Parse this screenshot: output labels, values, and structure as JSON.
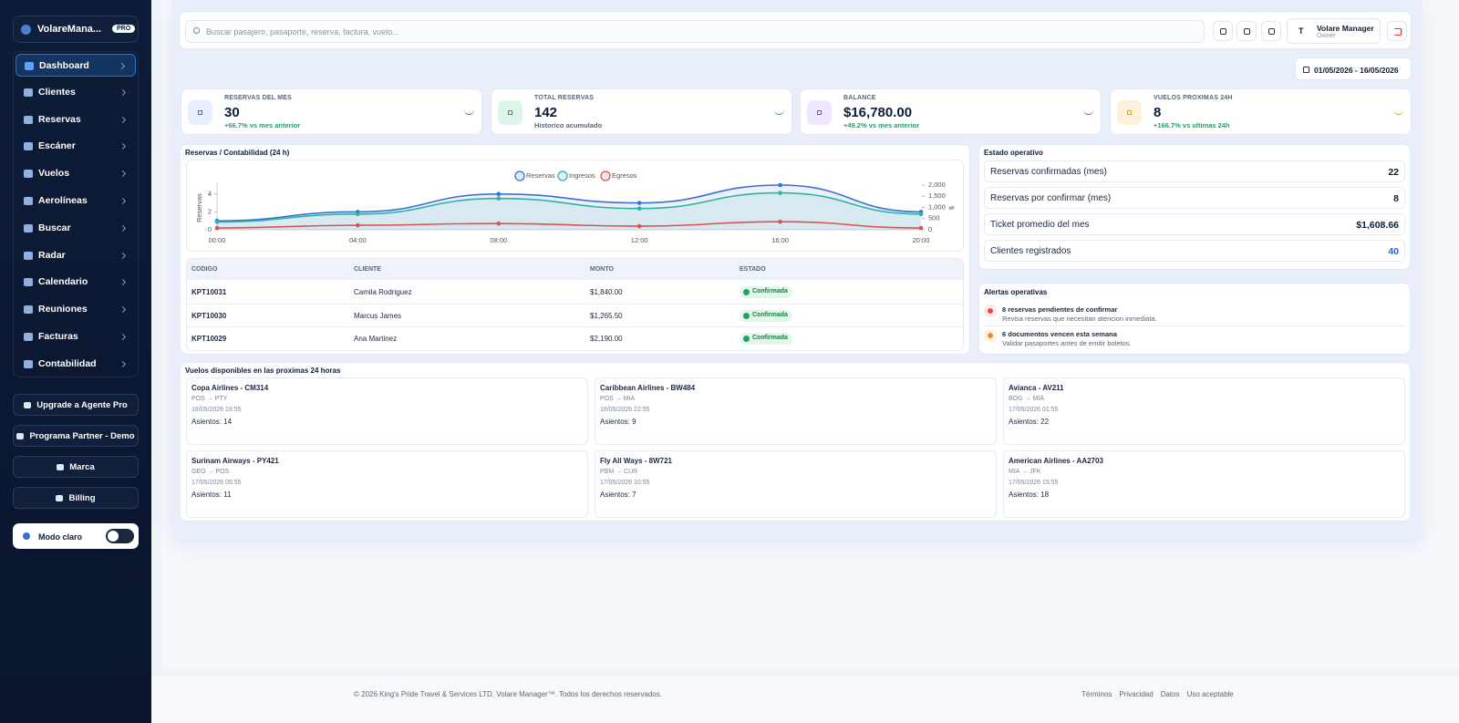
{
  "sidebar": {
    "brand": "VolareMana...",
    "badge": "PRO",
    "nav": [
      "Dashboard",
      "Clientes",
      "Reservas",
      "Escáner",
      "Vuelos",
      "Aerolíneas",
      "Buscar",
      "Radar",
      "Calendario",
      "Reuniones",
      "Facturas",
      "Contabilidad"
    ],
    "buttons": [
      "Upgrade a Agente Pro",
      "Programa Partner - Demo",
      "Marca",
      "Billing"
    ],
    "theme_label": "Modo claro"
  },
  "header": {
    "search_placeholder": "Buscar pasajero, pasaporte, reserva, factura, vuelo...",
    "avatar": "T",
    "user_name": "Volare Manager",
    "user_role": "Owner",
    "date_range": "01/05/2026 - 16/05/2026"
  },
  "kpis": [
    {
      "label": "RESERVAS DEL MES",
      "value": 30,
      "note": "+66.7% vs mes anterior"
    },
    {
      "label": "TOTAL RESERVAS",
      "value": 142,
      "note": "Historico acumulado"
    },
    {
      "label": "BALANCE",
      "value": "$16,780.00",
      "note": "+49.2% vs mes anterior"
    },
    {
      "label": "VUELOS PROXIMAS 24H",
      "value": 8,
      "note": "+166.7% vs ultimas 24h"
    }
  ],
  "chart": {
    "type": "line",
    "title": "Reservas / Contabilidad (24 h)",
    "categories": [
      "00:00",
      "04:00",
      "08:00",
      "12:00",
      "16:00",
      "20:00"
    ],
    "series": [
      {
        "name": "Reservas",
        "color": "#3a6fd8",
        "values": [
          1,
          2,
          4,
          3,
          5,
          2
        ]
      },
      {
        "name": "Ingresos",
        "color": "#2db3a6",
        "axis": "y2",
        "values": [
          350,
          700,
          1400,
          950,
          1650,
          700
        ]
      },
      {
        "name": "Egresos",
        "color": "#d9534f",
        "axis": "y2",
        "values": [
          80,
          200,
          280,
          160,
          360,
          80
        ]
      }
    ],
    "y_label": "Reservas",
    "y2_label": "$",
    "ylim": [
      0,
      5
    ],
    "yticks": [
      0,
      2,
      4
    ],
    "y2lim": [
      0,
      2000
    ],
    "y2ticks": [
      0,
      500,
      {
        "value": 1000,
        "label": "1,000"
      },
      {
        "value": 1500,
        "label": "1,500"
      },
      {
        "value": 2000,
        "label": "2,000"
      }
    ]
  },
  "table": {
    "headers": [
      "CODIGO",
      "CLIENTE",
      "MONTO",
      "ESTADO"
    ],
    "rows": [
      [
        "KPT10031",
        "Camila Rodriguez",
        "$1,840.00",
        "Confirmada"
      ],
      [
        "KPT10030",
        "Marcus James",
        "$1,265.50",
        "Confirmada"
      ],
      [
        "KPT10029",
        "Ana Martinez",
        "$2,190.00",
        "Confirmada"
      ]
    ]
  },
  "status": {
    "title": "Estado operativo",
    "rows": [
      [
        "Reservas confirmadas (mes)",
        22
      ],
      [
        "Reservas por confirmar (mes)",
        8
      ],
      [
        "Ticket promedio del mes",
        "$1,608.66"
      ],
      [
        "Clientes registrados",
        40
      ]
    ]
  },
  "alerts": {
    "title": "Alertas operativas",
    "items": [
      {
        "title": "8 reservas pendientes de confirmar",
        "text": "Revisa reservas que necesitan atencion inmediata."
      },
      {
        "title": "6 documentos vencen esta semana",
        "text": "Validar pasaportes antes de emitir boletos."
      }
    ]
  },
  "flights": {
    "title": "Vuelos disponibles en las proximas 24 horas",
    "items": [
      {
        "name": "Copa Airlines - CM314",
        "route": "POS → PTY",
        "time": "16/05/2026 19:55",
        "seats": "Asientos: 14"
      },
      {
        "name": "Caribbean Airlines - BW484",
        "route": "POS → MIA",
        "time": "16/05/2026 22:55",
        "seats": "Asientos: 9"
      },
      {
        "name": "Avianca - AV211",
        "route": "BOG → MIA",
        "time": "17/05/2026 01:55",
        "seats": "Asientos: 22"
      },
      {
        "name": "Surinam Airways - PY421",
        "route": "GEO → POS",
        "time": "17/05/2026 05:55",
        "seats": "Asientos: 11"
      },
      {
        "name": "Fly All Ways - 8W721",
        "route": "PBM → CUR",
        "time": "17/05/2026 10:55",
        "seats": "Asientos: 7"
      },
      {
        "name": "American Airlines - AA2703",
        "route": "MIA → JFK",
        "time": "17/05/2026 15:55",
        "seats": "Asientos: 18"
      }
    ]
  },
  "footer": {
    "copyright": "© 2026 King's Pride Travel & Services LTD. Volare Manager™. Todos los derechos reservados.",
    "links": [
      "Términos",
      "Privacidad",
      "Datos",
      "Uso aceptable"
    ]
  }
}
